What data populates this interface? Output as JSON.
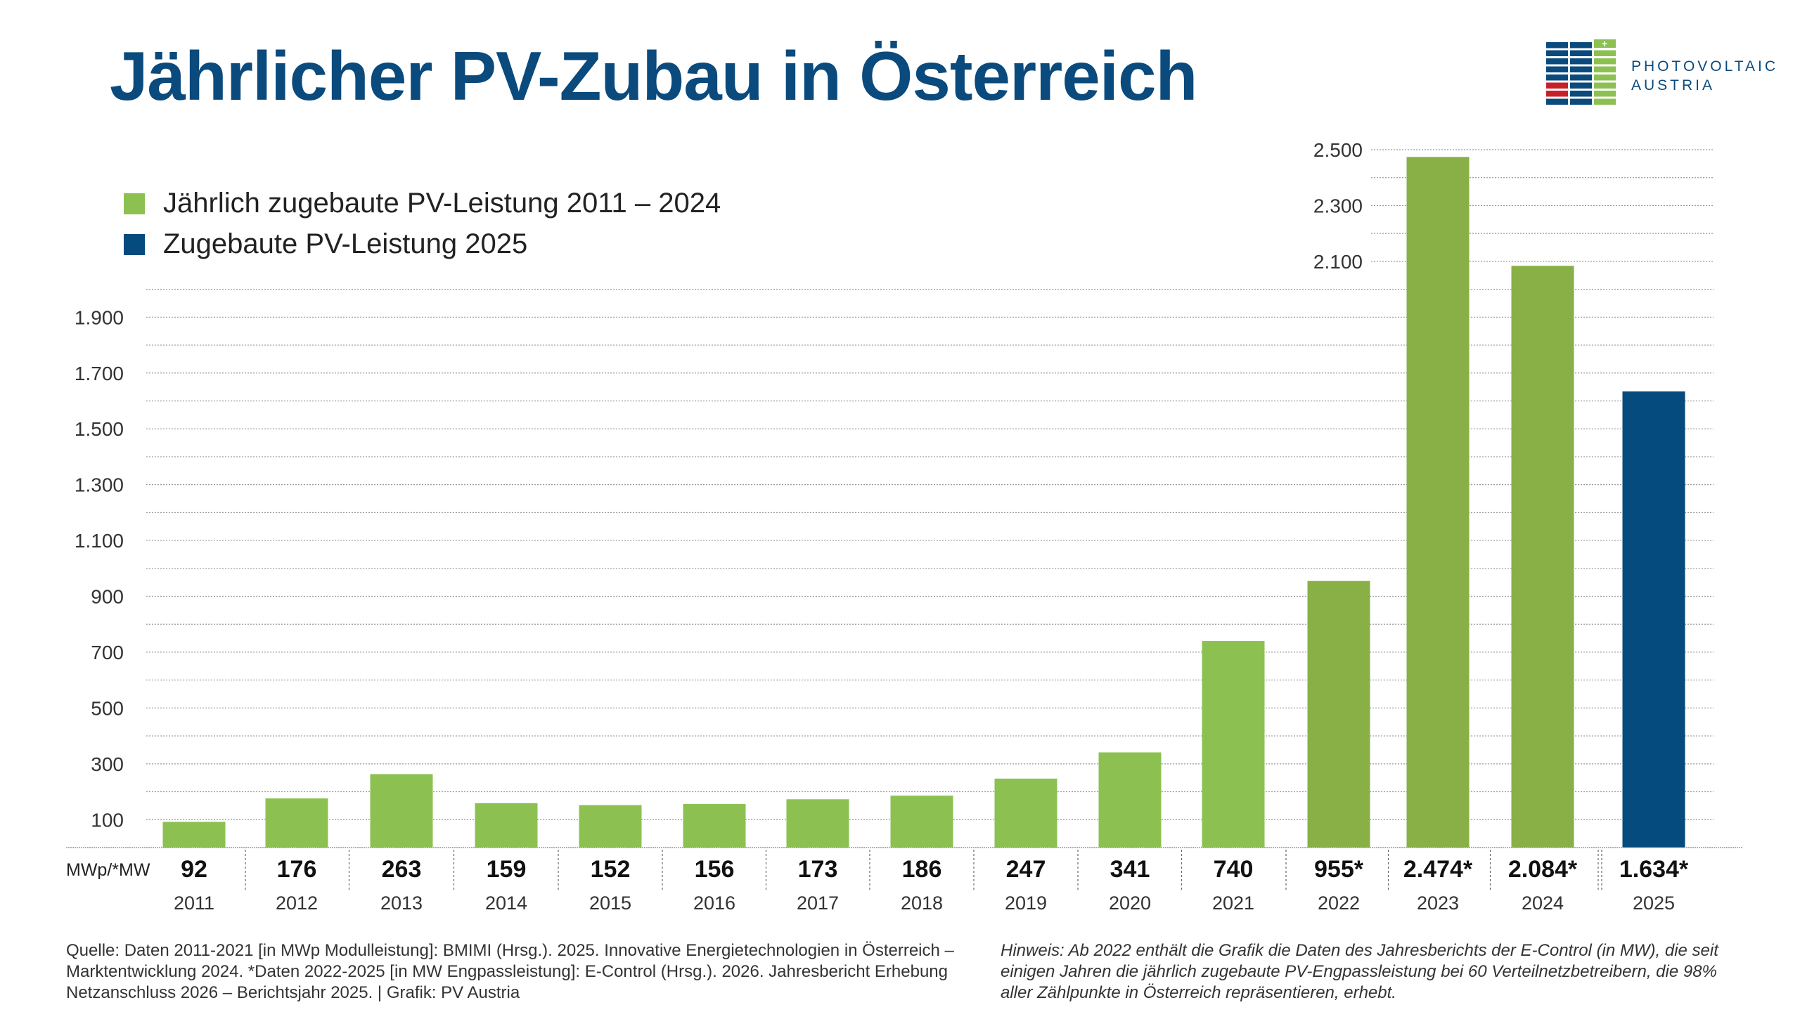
{
  "chart_data": {
    "type": "bar",
    "title": "Jährlicher PV-Zubau in Österreich",
    "unit_label": "MWp/*MW",
    "categories": [
      "2011",
      "2012",
      "2013",
      "2014",
      "2015",
      "2016",
      "2017",
      "2018",
      "2019",
      "2020",
      "2021",
      "2022",
      "2023",
      "2024",
      "2025"
    ],
    "values": [
      92,
      176,
      263,
      159,
      152,
      156,
      173,
      186,
      247,
      341,
      740,
      955,
      2474,
      2084,
      1634
    ],
    "value_labels": [
      "92",
      "176",
      "263",
      "159",
      "152",
      "156",
      "173",
      "186",
      "247",
      "341",
      "740",
      "955*",
      "2.474*",
      "2.084*",
      "1.634*"
    ],
    "series_index": [
      0,
      0,
      0,
      0,
      0,
      0,
      0,
      0,
      0,
      0,
      0,
      0,
      0,
      0,
      1
    ],
    "bar_colors": [
      "#8cc152",
      "#8cc152",
      "#8cc152",
      "#8cc152",
      "#8cc152",
      "#8cc152",
      "#8cc152",
      "#8cc152",
      "#8cc152",
      "#8cc152",
      "#8cc152",
      "#88b046",
      "#88b046",
      "#88b046",
      "#064b7e"
    ],
    "series": [
      {
        "name": "Jährlich zugebaute PV-Leistung 2011 – 2024",
        "color": "#8cc152"
      },
      {
        "name": "Zugebaute PV-Leistung 2025",
        "color": "#064b7e"
      }
    ],
    "ylim": [
      0,
      2500
    ],
    "yticks": [
      100,
      300,
      500,
      700,
      900,
      1100,
      1300,
      1500,
      1700,
      1900,
      2100,
      2300,
      2500
    ],
    "ytick_labels": [
      "100",
      "300",
      "500",
      "700",
      "900",
      "1.100",
      "1.300",
      "1.500",
      "1.700",
      "1.900",
      "2.100",
      "2.300",
      "2.500"
    ],
    "grid": true,
    "legend_position": "top-left"
  },
  "logo": {
    "line1": "PHOTOVOLTAIC",
    "line2": "AUSTRIA"
  },
  "footer": {
    "source": "Quelle: Daten 2011-2021 [in MWp Modulleistung]: BMIMI (Hrsg.). 2025. Innovative Energietechnologien in Österreich – Marktentwicklung 2024. *Daten 2022-2025 [in MW Engpassleistung]: E-Control (Hrsg.). 2026. Jahresbericht Erhebung Netzanschluss 2026 – Berichtsjahr 2025. | Grafik: PV Austria",
    "note": "Hinweis: Ab 2022 enthält die Grafik die Daten des Jahresberichts der E-Control (in MW), die seit einigen Jahren die jährlich zugebaute PV-Engpassleistung bei 60 Verteilnetzbetreibern, die 98% aller Zählpunkte in Österreich repräsentieren, erhebt."
  }
}
